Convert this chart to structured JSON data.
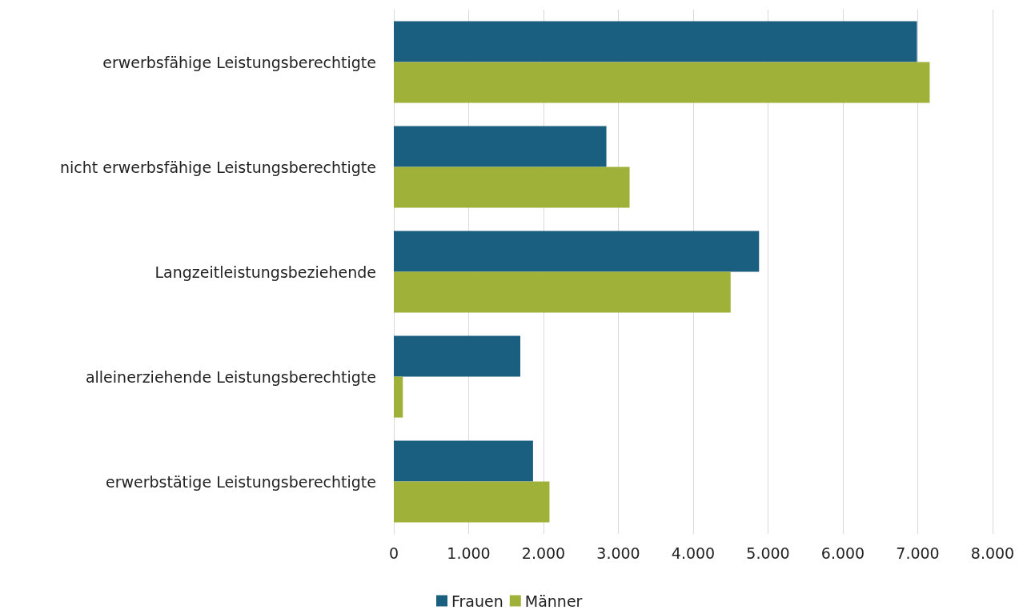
{
  "chart_data": {
    "type": "bar",
    "orientation": "horizontal",
    "categories": [
      "erwerbsfähige Leistungsberechtigte",
      "nicht erwerbsfähige Leistungsberechtigte",
      "Langzeitleistungsbeziehende",
      "alleinerziehende Leistungsberechtigte",
      "erwerbstätige Leistungsberechtigte"
    ],
    "series": [
      {
        "name": "Frauen",
        "color": "#1a5f80",
        "values": [
          6990,
          2840,
          4880,
          1690,
          1860
        ]
      },
      {
        "name": "Männer",
        "color": "#a0b13a",
        "values": [
          7160,
          3150,
          4500,
          120,
          2080
        ]
      }
    ],
    "xlim": [
      0,
      8000
    ],
    "xticks": [
      {
        "value": 0,
        "label": "0"
      },
      {
        "value": 1000,
        "label": "1.000"
      },
      {
        "value": 2000,
        "label": "2.000"
      },
      {
        "value": 3000,
        "label": "3.000"
      },
      {
        "value": 4000,
        "label": "4.000"
      },
      {
        "value": 5000,
        "label": "5.000"
      },
      {
        "value": 6000,
        "label": "6.000"
      },
      {
        "value": 7000,
        "label": "7.000"
      },
      {
        "value": 8000,
        "label": "8.000"
      }
    ],
    "grid": "x",
    "legend": "bottom"
  }
}
